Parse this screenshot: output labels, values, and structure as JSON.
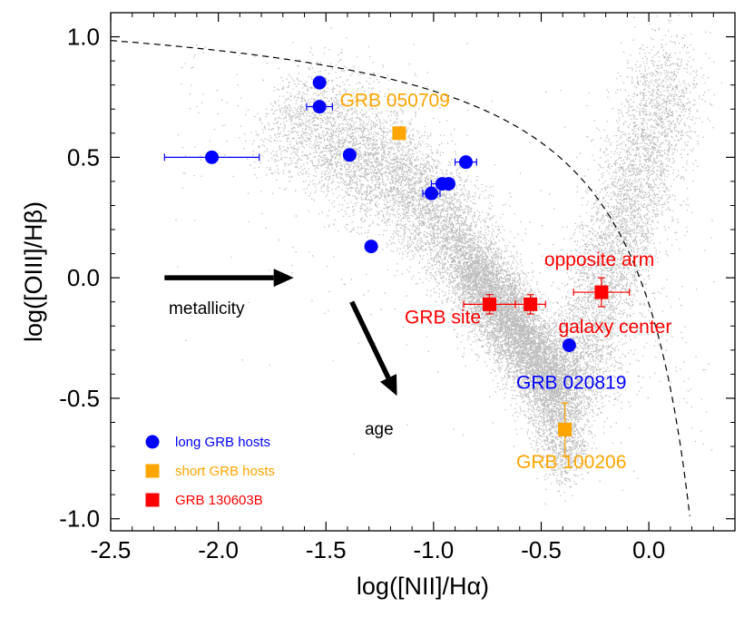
{
  "chart_data": {
    "type": "scatter",
    "xlabel": "log([NII]/Hα)",
    "ylabel": "log([OIII]/Hβ)",
    "xlim": [
      -2.5,
      0.4
    ],
    "ylim": [
      -1.05,
      1.1
    ],
    "x_ticks": [
      "-2.5",
      "-2.0",
      "-1.5",
      "-1.0",
      "-0.5",
      "0.0"
    ],
    "x_tick_values": [
      -2.5,
      -2.0,
      -1.5,
      -1.0,
      -0.5,
      0.0
    ],
    "y_ticks": [
      "1.0",
      "0.5",
      "0.0",
      "-0.5",
      "-1.0"
    ],
    "y_tick_values": [
      1.0,
      0.5,
      0.0,
      -0.5,
      -1.0
    ],
    "background": {
      "name": "",
      "color": "#bdbdbd"
    },
    "colors": {
      "long": "#0000ff",
      "short": "#ffa500",
      "grb130603b": "#ff0000"
    },
    "series": [
      {
        "name": "long GRB hosts",
        "marker": "circle",
        "points": [
          {
            "x": -1.53,
            "y": 0.81
          },
          {
            "x": -1.53,
            "y": 0.71,
            "xerr": 0.06
          },
          {
            "x": -2.03,
            "y": 0.5,
            "xerr": 0.22
          },
          {
            "x": -1.39,
            "y": 0.51
          },
          {
            "x": -0.85,
            "y": 0.48,
            "xerr": 0.05
          },
          {
            "x": -0.96,
            "y": 0.39,
            "xerr": 0.05
          },
          {
            "x": -0.93,
            "y": 0.39
          },
          {
            "x": -1.01,
            "y": 0.35,
            "xerr": 0.04
          },
          {
            "x": -1.29,
            "y": 0.13
          },
          {
            "x": -0.37,
            "y": -0.28
          }
        ]
      },
      {
        "name": "short GRB hosts",
        "marker": "square",
        "points": [
          {
            "x": -1.16,
            "y": 0.6
          },
          {
            "x": -0.39,
            "y": -0.63,
            "yerr": 0.11
          }
        ]
      },
      {
        "name": "GRB 130603B",
        "marker": "square",
        "points": [
          {
            "x": -0.74,
            "y": -0.11,
            "xerr": 0.12,
            "yerr": 0.04
          },
          {
            "x": -0.55,
            "y": -0.11,
            "xerr": 0.07,
            "yerr": 0.04
          },
          {
            "x": -0.22,
            "y": -0.06,
            "xerr": 0.13,
            "yerr": 0.06
          }
        ]
      }
    ],
    "dividing_curve": {
      "style": "dashed",
      "formula": "0.61/(x-0.47)+1.19"
    },
    "annotations": [
      {
        "text": "GRB 050709",
        "color": "#ffa500"
      },
      {
        "text": "opposite arm",
        "color": "#ff0000"
      },
      {
        "text": "GRB site",
        "color": "#ff0000"
      },
      {
        "text": "galaxy center",
        "color": "#ff0000"
      },
      {
        "text": "GRB 020819",
        "color": "#0000ff"
      },
      {
        "text": "GRB 100206",
        "color": "#ffa500"
      }
    ],
    "arrows": [
      {
        "label": "metallicity",
        "from": [
          -2.25,
          0.0
        ],
        "to": [
          -1.65,
          0.0
        ]
      },
      {
        "label": "age",
        "from": [
          -1.38,
          -0.1
        ],
        "to": [
          -1.17,
          -0.49
        ]
      }
    ],
    "legend": {
      "position": "bottom-left",
      "entries": [
        {
          "label": "long GRB hosts",
          "marker": "circle",
          "color": "#0000ff"
        },
        {
          "label": "short GRB hosts",
          "marker": "square",
          "color": "#ffa500"
        },
        {
          "label": "GRB 130603B",
          "marker": "square",
          "color": "#ff0000"
        }
      ]
    }
  }
}
